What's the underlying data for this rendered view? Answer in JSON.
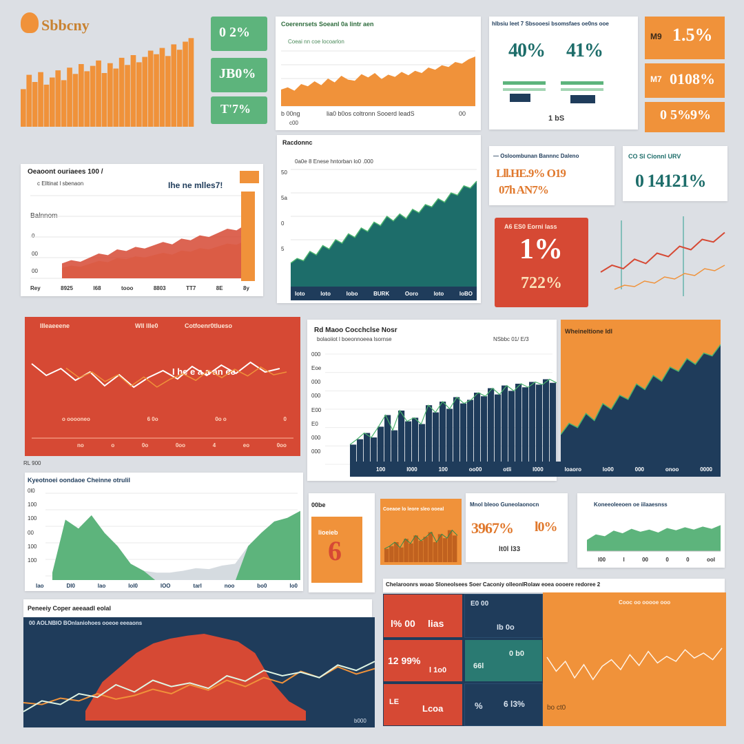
{
  "colors": {
    "orange": "#f0923a",
    "green": "#5db47c",
    "teal": "#1d6d6a",
    "navy": "#1f3c5b",
    "red": "#d64934",
    "background": "#dcdfe4",
    "white": "#ffffff"
  },
  "logo": {
    "text": "Sbbcny",
    "icon": "logo-mark-icon"
  },
  "p_top_orange_chart": {
    "chart_data": {
      "type": "bar",
      "series": [
        {
          "values": [
            42,
            58,
            50,
            61,
            47,
            55,
            63,
            52,
            66,
            59,
            70,
            62,
            68,
            74,
            60,
            71,
            65,
            77,
            69,
            80,
            72,
            78,
            85,
            81,
            88,
            79,
            92,
            86,
            95,
            99
          ]
        }
      ],
      "ylim": [
        0,
        100
      ]
    },
    "xticks": [
      "",
      "",
      "",
      "",
      ""
    ]
  },
  "stat_pills_green": [
    {
      "value": "0 2%"
    },
    {
      "value": "JB0%"
    },
    {
      "value": "T'7%"
    }
  ],
  "p_top_center_chart": {
    "title": "Coerenrsets Soeanl 0a lintr aen",
    "subtitle": "Coeai nn coe locoarlon",
    "footer_left": "b 00ng",
    "footer_mid": "lia0 b0os coltronn Sooerd leadS",
    "footer_right": "00",
    "footer_sub": "c00",
    "chart_data": {
      "type": "area",
      "series": [
        {
          "values": [
            30,
            34,
            28,
            40,
            36,
            45,
            38,
            50,
            43,
            55,
            48,
            46,
            58,
            52,
            60,
            49,
            57,
            53,
            62,
            56,
            64,
            60,
            70,
            66,
            74,
            71,
            80,
            77,
            85,
            90
          ]
        }
      ],
      "ylim": [
        0,
        100
      ]
    }
  },
  "p_top_gauges": {
    "title": "hlbsiu leet 7 Sbsooesi bsomsfaes oe0ns ooe",
    "values": [
      {
        "value": "40%"
      },
      {
        "value": "41%"
      }
    ],
    "footer": "1 bS"
  },
  "stat_tiles_orange": [
    {
      "value": "1.5%",
      "prefix": "M9"
    },
    {
      "value": "0108%",
      "prefix": "M7"
    },
    {
      "value": "9%",
      "prefix": "0 5%"
    }
  ],
  "p_mid_left_chart": {
    "title": "Oeaoont ouriaees 100 /",
    "legend": "c Elltinat l sbenaon",
    "headline": "Ihe ne mlles7!",
    "label": "Balnnom",
    "ylabels": [
      "0",
      "00",
      "00"
    ],
    "xticks": [
      "Rey",
      "8925",
      "l68",
      "tooo",
      "8803",
      "TT7",
      "8E",
      "8y"
    ],
    "chart_data": {
      "type": "area",
      "series": [
        {
          "values": [
            18,
            22,
            20,
            25,
            30,
            28,
            35,
            33,
            38,
            36,
            40,
            44,
            41,
            48,
            46,
            52,
            50,
            55,
            60,
            58,
            65,
            70
          ]
        }
      ],
      "ylim": [
        0,
        100
      ]
    }
  },
  "p_teal_chart": {
    "title": "Racdonnc",
    "subtitle": "0a0e 8 Enese hntorban lo0 .000",
    "ylabels": [
      "50",
      "5a",
      "0",
      "5"
    ],
    "xticks": [
      "loto",
      "loto",
      "lobo",
      "BURK",
      "Ooro",
      "loto",
      "loBO"
    ],
    "chart_data": {
      "type": "area",
      "series": [
        {
          "values": [
            20,
            24,
            22,
            30,
            27,
            35,
            32,
            40,
            37,
            45,
            42,
            50,
            47,
            55,
            52,
            60,
            56,
            62,
            58,
            66,
            63,
            70,
            68,
            75,
            72,
            80,
            78,
            86,
            84,
            90
          ]
        }
      ],
      "ylim": [
        0,
        100
      ]
    }
  },
  "p_kpi_card_1": {
    "title": "— Osloombunan Bannnc Daleno",
    "value_a": "Lll.HE.9% O19",
    "value_b": "07h  AN7%"
  },
  "p_kpi_card_2": {
    "title": "CO Sl Cionnl URV",
    "value": "0 14121%"
  },
  "p_red_kpi": {
    "title": "A6 ES0 Eorni lass",
    "value": "1%",
    "sub": "722%"
  },
  "p_float_line": {
    "chart_data": {
      "type": "line",
      "series": [
        {
          "values": [
            20,
            28,
            24,
            35,
            30,
            42,
            38,
            50,
            46,
            58,
            55,
            66
          ]
        },
        {
          "values": [
            10,
            16,
            14,
            22,
            19,
            28,
            25,
            33,
            30,
            40,
            37,
            45
          ]
        }
      ],
      "ylim": [
        0,
        80
      ]
    }
  },
  "p_red_wave": {
    "title_a": "IIIeaeeene",
    "title_b": "WlI lIIe0",
    "title_c": "Cotfoenr0tlueso",
    "label": "I he e  a  a an ee",
    "markers": [
      "o ooooneo",
      "6 0o",
      "0o  o",
      "0"
    ],
    "xticks": [
      "no",
      "o",
      "0o",
      "0oo",
      "4",
      "eo",
      "0oo"
    ],
    "footer": "RL 900",
    "chart_data": {
      "type": "line",
      "series": [
        {
          "values": [
            62,
            45,
            55,
            38,
            50,
            30,
            46,
            28,
            42,
            52,
            40,
            58,
            45,
            60,
            48,
            64,
            50,
            55
          ]
        }
      ],
      "ylim": [
        0,
        100
      ]
    }
  },
  "p_center_main": {
    "title": "Rd Maoo Cocchclse Nosr",
    "subtitle": "bolaoiiot l boeonnoeea lsornse",
    "legend": "NSbbc 01/ E/3",
    "ylabels": [
      "000",
      "Eoe",
      "000",
      "000",
      "E00",
      "E0",
      "000",
      "000"
    ],
    "xticks": [
      "100",
      "l000",
      "100",
      "oo00",
      "otli",
      "l000",
      "loaoro",
      "lo00",
      "000",
      "onoo",
      "0000"
    ],
    "chart_data": {
      "type": "bar",
      "series": [
        {
          "values": [
            22,
            28,
            35,
            30,
            42,
            55,
            38,
            60,
            48,
            52,
            45,
            66,
            58,
            70,
            62,
            75,
            68,
            72,
            80,
            76,
            85,
            78,
            88,
            82,
            90,
            86,
            92,
            89,
            95,
            91
          ]
        }
      ],
      "ylim": [
        0,
        100
      ]
    }
  },
  "p_orange_navy": {
    "title": "Wheineltione Idl",
    "chart_data": {
      "type": "area",
      "series": [
        {
          "values": [
            30,
            38,
            35,
            45,
            40,
            52,
            48,
            58,
            55,
            66,
            62,
            72,
            68,
            78,
            75,
            84,
            80,
            88,
            86,
            94
          ]
        }
      ],
      "ylim": [
        0,
        100
      ]
    }
  },
  "p_green_area": {
    "title": "Kyeotnoei oondaoe Cheinne otrulil",
    "ylabels": [
      "0l0",
      "100",
      "100",
      "00",
      "100",
      "100"
    ],
    "xticks": [
      "lao",
      "DI0",
      "lao",
      "lol0",
      "lOO",
      "tarl",
      "noo",
      "bo0",
      "lo0"
    ],
    "footer": "E  oao",
    "chart_data": {
      "type": "area",
      "series": [
        {
          "values": [
            10,
            70,
            60,
            75,
            55,
            40,
            20,
            12,
            10,
            10,
            12,
            15,
            14,
            18,
            20,
            40,
            55,
            68,
            72,
            80
          ]
        }
      ],
      "ylim": [
        0,
        100
      ]
    }
  },
  "p_small_orange": {
    "title": "00be",
    "value": "6",
    "label": "lioeieb"
  },
  "p_small_bars": {
    "title": "Coeaoe lo leore sleo ooeal",
    "chart_data": {
      "type": "bar",
      "series": [
        {
          "values": [
            20,
            24,
            30,
            22,
            35,
            28,
            40,
            32,
            38,
            45,
            30,
            42,
            36,
            48,
            40
          ]
        }
      ],
      "ylim": [
        0,
        60
      ]
    }
  },
  "p_percent_card": {
    "title": "Mnol bleoo Guneolaonocn",
    "value": "3967%",
    "value_b": "l0%",
    "sub": "lt0l l33"
  },
  "p_green_strip": {
    "title": "Koneeoleeoen oe iilaaesnss",
    "xticks": [
      "l00",
      "l",
      "00",
      "0",
      "0",
      "ool"
    ],
    "chart_data": {
      "type": "area",
      "series": [
        {
          "values": [
            30,
            45,
            40,
            55,
            48,
            60,
            52,
            58,
            50,
            62,
            56,
            64,
            58,
            66,
            60,
            70
          ]
        }
      ],
      "ylim": [
        0,
        100
      ]
    }
  },
  "p_bottom_left": {
    "title": "Peneeiy Coper aeeaadl eolal",
    "subtitle": "00 AOLNBIO BOnlaniohoes ooeoe eeeaons",
    "footer": "b000",
    "chart_data": {
      "type": "line",
      "series": [
        {
          "values": [
            20,
            18,
            25,
            22,
            30,
            24,
            28,
            35,
            30,
            40,
            34,
            45,
            38,
            48,
            42,
            55,
            48,
            60,
            52,
            58
          ]
        },
        {
          "values": [
            10,
            22,
            18,
            30,
            26,
            40,
            32,
            45,
            38,
            42,
            36,
            50,
            44,
            56,
            50,
            54,
            48,
            62,
            56,
            66
          ]
        }
      ],
      "ylim": [
        0,
        100
      ]
    }
  },
  "p_bottom_grid": {
    "title": "Chelaroonrs  woao Sloneolsees  Soer  Caconiy olleonlRolaw eoea oooere  redoree 2",
    "cells": [
      {
        "value": "l% 00"
      },
      {
        "value": "lias"
      },
      {
        "value": "12 99%"
      },
      {
        "value": "l 1o0"
      },
      {
        "value": "E0 00"
      },
      {
        "value": "Ib 0o"
      },
      {
        "value": "LE"
      },
      {
        "value": "Lcoa"
      },
      {
        "value": "66l"
      },
      {
        "value": "0 b0"
      },
      {
        "value": "%"
      },
      {
        "value": "6 l3%"
      }
    ],
    "footer": "10"
  },
  "p_bottom_orange": {
    "title": "Cooc oo ooooe ooo",
    "label": "bo  ct0",
    "chart_data": {
      "type": "line",
      "series": [
        {
          "values": [
            55,
            38,
            50,
            30,
            46,
            28,
            44,
            52,
            40,
            58,
            45,
            62,
            48,
            56,
            50,
            64,
            54,
            60,
            52,
            66
          ]
        }
      ],
      "ylim": [
        0,
        100
      ]
    }
  }
}
